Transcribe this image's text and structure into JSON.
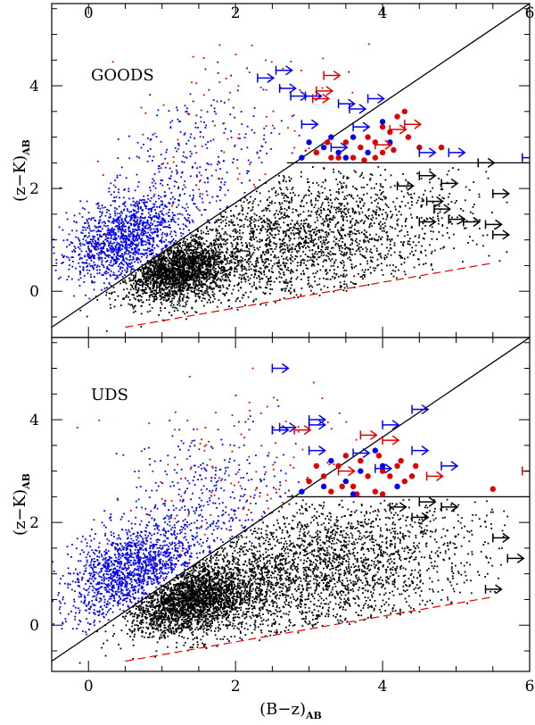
{
  "chart_data": [
    {
      "type": "scatter",
      "panel": "top",
      "label": "GOODS",
      "xlabel": "(B−z)",
      "xlabel_sub": "AB",
      "ylabel": "(z−K)",
      "ylabel_sub": "AB",
      "xlim": [
        -0.5,
        6
      ],
      "ylim": [
        -0.9,
        5.6
      ],
      "xticks": [
        0,
        2,
        4,
        6
      ],
      "yticks": [
        0,
        2,
        4
      ],
      "lines": [
        {
          "name": "diagonal selection",
          "style": "solid",
          "color": "#000000",
          "points": [
            [
              -0.5,
              -0.7
            ],
            [
              6,
              5.6
            ]
          ]
        },
        {
          "name": "horizontal selection",
          "style": "solid",
          "color": "#000000",
          "points": [
            [
              2.7,
              2.5
            ],
            [
              6,
              2.5
            ]
          ]
        },
        {
          "name": "locus",
          "style": "dashed",
          "color": "#e00000",
          "points": [
            [
              0.5,
              -0.7
            ],
            [
              5.5,
              0.55
            ]
          ]
        }
      ],
      "scatter_clouds": [
        {
          "name": "blue star-forming",
          "color": "#0000ee",
          "n": 1300,
          "cx": 0.5,
          "cy": 1.0,
          "sx": 0.4,
          "sy": 0.45,
          "corr": 0.35,
          "above": true
        },
        {
          "name": "blue sparse",
          "color": "#0000ee",
          "n": 300,
          "cx": 1.5,
          "cy": 2.4,
          "sx": 0.6,
          "sy": 0.8,
          "corr": 0.2,
          "above": true
        },
        {
          "name": "red sparse",
          "color": "#e00000",
          "n": 90,
          "cx": 2.0,
          "cy": 3.0,
          "sx": 0.8,
          "sy": 0.9,
          "corr": 0.2,
          "above": true
        },
        {
          "name": "black dense core",
          "color": "#000000",
          "n": 2000,
          "cx": 1.2,
          "cy": 0.4,
          "sx": 0.35,
          "sy": 0.3,
          "corr": 0.3,
          "above": false
        },
        {
          "name": "black wide cloud",
          "color": "#000000",
          "n": 2200,
          "cx": 2.8,
          "cy": 1.0,
          "sx": 1.1,
          "sy": 0.7,
          "corr": 0.3,
          "above": false
        }
      ],
      "large_points": [
        {
          "color": "#e00000",
          "points": [
            [
              3.1,
              2.7
            ],
            [
              3.3,
              2.6
            ],
            [
              3.5,
              2.9
            ],
            [
              3.7,
              2.8
            ],
            [
              3.8,
              3.0
            ],
            [
              3.9,
              2.6
            ],
            [
              4.0,
              3.2
            ],
            [
              4.1,
              3.1
            ],
            [
              4.2,
              3.4
            ],
            [
              4.3,
              3.5
            ],
            [
              3.6,
              2.6
            ],
            [
              3.9,
              2.9
            ],
            [
              4.0,
              2.7
            ],
            [
              4.5,
              2.8
            ],
            [
              4.8,
              2.8
            ],
            [
              3.4,
              2.6
            ],
            [
              4.15,
              2.75
            ],
            [
              3.75,
              2.55
            ],
            [
              3.25,
              2.9
            ],
            [
              4.35,
              3.0
            ]
          ]
        },
        {
          "color": "#0000ee",
          "points": [
            [
              2.9,
              2.6
            ],
            [
              3.2,
              2.8
            ],
            [
              3.4,
              2.7
            ],
            [
              3.6,
              3.0
            ],
            [
              3.8,
              2.7
            ],
            [
              4.0,
              3.3
            ],
            [
              3.0,
              2.9
            ],
            [
              3.5,
              2.6
            ],
            [
              4.1,
              2.9
            ],
            [
              3.3,
              3.0
            ]
          ]
        }
      ],
      "arrows": [
        {
          "color": "#0000ee",
          "points": [
            [
              2.3,
              4.15
            ],
            [
              2.55,
              4.3
            ],
            [
              2.6,
              3.95
            ],
            [
              2.95,
              3.8
            ],
            [
              2.75,
              3.8
            ],
            [
              3.4,
              3.65
            ],
            [
              3.55,
              3.55
            ],
            [
              3.8,
              3.75
            ],
            [
              3.6,
              3.2
            ],
            [
              2.9,
              3.25
            ],
            [
              4.5,
              2.7
            ],
            [
              3.3,
              2.8
            ],
            [
              4.9,
              2.7
            ],
            [
              5.9,
              2.6
            ]
          ]
        },
        {
          "color": "#e00000",
          "points": [
            [
              3.2,
              4.2
            ],
            [
              3.1,
              3.9
            ],
            [
              3.05,
              3.75
            ],
            [
              4.3,
              3.25
            ],
            [
              4.1,
              3.15
            ],
            [
              3.9,
              2.85
            ]
          ]
        },
        {
          "color": "#000000",
          "points": [
            [
              5.3,
              2.5
            ],
            [
              4.5,
              2.25
            ],
            [
              4.8,
              2.1
            ],
            [
              5.5,
              1.9
            ],
            [
              4.6,
              1.75
            ],
            [
              4.2,
              2.05
            ],
            [
              4.5,
              1.35
            ],
            [
              4.9,
              1.4
            ],
            [
              5.1,
              1.35
            ],
            [
              4.7,
              1.6
            ],
            [
              5.4,
              1.3
            ],
            [
              5.5,
              1.1
            ]
          ]
        }
      ]
    },
    {
      "type": "scatter",
      "panel": "bottom",
      "label": "UDS",
      "xlabel": "(B−z)",
      "xlabel_sub": "AB",
      "ylabel": "(z−K)",
      "ylabel_sub": "AB",
      "xlim": [
        -0.5,
        6
      ],
      "ylim": [
        -0.9,
        5.6
      ],
      "xticks": [
        0,
        2,
        4,
        6
      ],
      "yticks": [
        0,
        2,
        4
      ],
      "lines": [
        {
          "name": "diagonal selection",
          "style": "solid",
          "color": "#000000",
          "points": [
            [
              -0.5,
              -0.7
            ],
            [
              6,
              5.6
            ]
          ]
        },
        {
          "name": "horizontal selection",
          "style": "solid",
          "color": "#000000",
          "points": [
            [
              2.7,
              2.5
            ],
            [
              6,
              2.5
            ]
          ]
        },
        {
          "name": "locus",
          "style": "dashed",
          "color": "#e00000",
          "points": [
            [
              0.5,
              -0.7
            ],
            [
              5.5,
              0.55
            ]
          ]
        }
      ],
      "scatter_clouds": [
        {
          "name": "blue star-forming",
          "color": "#0000ee",
          "n": 1400,
          "cx": 0.6,
          "cy": 1.05,
          "sx": 0.45,
          "sy": 0.45,
          "corr": 0.35,
          "above": true
        },
        {
          "name": "blue sparse",
          "color": "#0000ee",
          "n": 350,
          "cx": 1.6,
          "cy": 2.3,
          "sx": 0.6,
          "sy": 0.8,
          "corr": 0.2,
          "above": true
        },
        {
          "name": "red sparse",
          "color": "#e00000",
          "n": 120,
          "cx": 2.1,
          "cy": 2.9,
          "sx": 0.8,
          "sy": 0.8,
          "corr": 0.2,
          "above": true
        },
        {
          "name": "black dense core",
          "color": "#000000",
          "n": 2300,
          "cx": 1.4,
          "cy": 0.5,
          "sx": 0.45,
          "sy": 0.35,
          "corr": 0.3,
          "above": false
        },
        {
          "name": "black wide cloud",
          "color": "#000000",
          "n": 2600,
          "cx": 3.0,
          "cy": 1.1,
          "sx": 1.1,
          "sy": 0.7,
          "corr": 0.3,
          "above": false
        }
      ],
      "large_points": [
        {
          "color": "#e00000",
          "points": [
            [
              3.0,
              2.8
            ],
            [
              3.2,
              2.9
            ],
            [
              3.4,
              3.1
            ],
            [
              3.6,
              2.7
            ],
            [
              3.7,
              3.2
            ],
            [
              3.9,
              2.6
            ],
            [
              4.0,
              3.0
            ],
            [
              4.1,
              2.9
            ],
            [
              4.2,
              3.1
            ],
            [
              4.3,
              2.8
            ],
            [
              3.3,
              2.6
            ],
            [
              3.5,
              3.3
            ],
            [
              3.8,
              2.9
            ],
            [
              4.0,
              2.55
            ],
            [
              4.4,
              2.9
            ],
            [
              5.5,
              2.65
            ],
            [
              3.1,
              3.1
            ],
            [
              3.65,
              2.55
            ],
            [
              4.25,
              3.2
            ],
            [
              3.95,
              3.3
            ],
            [
              4.45,
              3.1
            ],
            [
              3.45,
              2.7
            ]
          ]
        },
        {
          "color": "#0000ee",
          "points": [
            [
              2.9,
              2.6
            ],
            [
              3.2,
              2.7
            ],
            [
              3.5,
              2.8
            ],
            [
              3.7,
              3.0
            ],
            [
              4.0,
              3.1
            ],
            [
              3.3,
              3.2
            ],
            [
              3.6,
              2.55
            ],
            [
              4.2,
              2.7
            ],
            [
              3.9,
              3.4
            ]
          ]
        }
      ],
      "arrows": [
        {
          "color": "#0000ee",
          "points": [
            [
              2.5,
              5.0
            ],
            [
              3.0,
              4.0
            ],
            [
              2.5,
              3.8
            ],
            [
              2.6,
              3.85
            ],
            [
              3.0,
              3.9
            ],
            [
              4.4,
              4.2
            ],
            [
              4.0,
              3.9
            ],
            [
              3.6,
              3.35
            ],
            [
              3.9,
              3.05
            ],
            [
              4.4,
              3.4
            ],
            [
              4.8,
              3.1
            ],
            [
              3.0,
              3.4
            ]
          ]
        },
        {
          "color": "#e00000",
          "points": [
            [
              2.8,
              3.8
            ],
            [
              3.7,
              3.7
            ],
            [
              4.0,
              3.6
            ],
            [
              5.9,
              3.0
            ],
            [
              4.6,
              2.9
            ],
            [
              3.4,
              3.0
            ]
          ]
        },
        {
          "color": "#000000",
          "points": [
            [
              4.1,
              2.3
            ],
            [
              4.5,
              2.4
            ],
            [
              4.8,
              2.3
            ],
            [
              4.4,
              2.1
            ],
            [
              5.5,
              1.7
            ],
            [
              5.7,
              1.3
            ],
            [
              5.4,
              0.7
            ]
          ]
        }
      ]
    }
  ]
}
